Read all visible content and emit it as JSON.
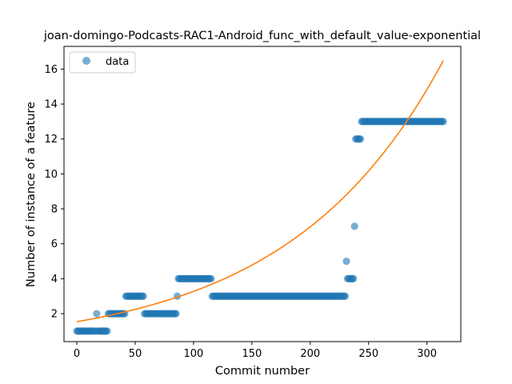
{
  "chart_data": {
    "type": "scatter",
    "title": "joan-domingo-Podcasts-RAC1-Android_func_with_default_value-exponential",
    "xlabel": "Commit number",
    "ylabel": "Number of instance of a feature",
    "xlim": [
      -11,
      329
    ],
    "ylim": [
      0.4,
      17.3
    ],
    "xticks": [
      0,
      50,
      100,
      150,
      200,
      250,
      300
    ],
    "yticks": [
      2,
      4,
      6,
      8,
      10,
      12,
      14,
      16
    ],
    "grid": false,
    "legend": {
      "location": "upper-left",
      "entries": [
        "data"
      ]
    },
    "colors": {
      "data": "#1f77b4",
      "fit": "#ff7f0e"
    },
    "series": [
      {
        "name": "data",
        "kind": "scatter",
        "runs": [
          {
            "x_from": 0,
            "x_to": 16,
            "y": 1
          },
          {
            "x_from": 17,
            "x_to": 17,
            "y": 2
          },
          {
            "x_from": 18,
            "x_to": 26,
            "y": 1
          },
          {
            "x_from": 27,
            "x_to": 41,
            "y": 2
          },
          {
            "x_from": 42,
            "x_to": 57,
            "y": 3
          },
          {
            "x_from": 58,
            "x_to": 85,
            "y": 2
          },
          {
            "x_from": 86,
            "x_to": 86,
            "y": 3
          },
          {
            "x_from": 87,
            "x_to": 115,
            "y": 4
          },
          {
            "x_from": 116,
            "x_to": 230,
            "y": 3
          },
          {
            "x_from": 231,
            "x_to": 231,
            "y": 5
          },
          {
            "x_from": 232,
            "x_to": 237,
            "y": 4
          },
          {
            "x_from": 238,
            "x_to": 238,
            "y": 7
          },
          {
            "x_from": 239,
            "x_to": 243,
            "y": 12
          },
          {
            "x_from": 244,
            "x_to": 314,
            "y": 13
          }
        ]
      },
      {
        "kind": "line",
        "model": "exponential",
        "a": 1.54,
        "b": 0.00755,
        "x_range": [
          0,
          314
        ]
      }
    ]
  }
}
